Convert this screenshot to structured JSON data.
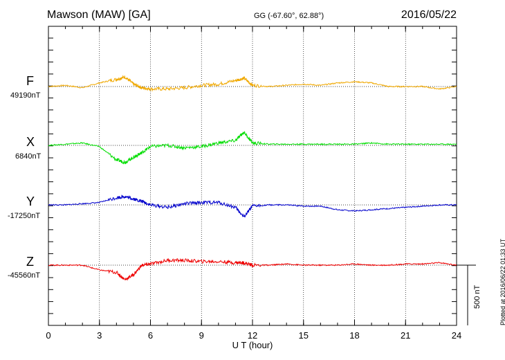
{
  "header": {
    "station": "Mawson (MAW)  [GA]",
    "coords": "GG (-67.60°,  62.88°)",
    "date": "2016/05/22"
  },
  "plotted_note": "Plotted at 2016/06/22 01:33 UT",
  "scale_label": "500 nT",
  "colors": {
    "F": "#f0a800",
    "X": "#00dd00",
    "Y": "#0000cc",
    "Z": "#ee0000",
    "axis": "#000000"
  },
  "chart_data": {
    "type": "line",
    "xlabel": "U T (hour)",
    "xlim": [
      0,
      24
    ],
    "x_ticks": [
      0,
      3,
      6,
      9,
      12,
      15,
      18,
      21,
      24
    ],
    "scale_bar_nT": 500,
    "series": [
      {
        "name": "F",
        "baseline": "49190nT",
        "points": [
          [
            0,
            0
          ],
          [
            1,
            10
          ],
          [
            2,
            -10
          ],
          [
            3,
            30
          ],
          [
            4,
            60
          ],
          [
            4.5,
            80
          ],
          [
            5,
            20
          ],
          [
            5.5,
            -10
          ],
          [
            6,
            -20
          ],
          [
            7,
            -20
          ],
          [
            8,
            -10
          ],
          [
            9,
            10
          ],
          [
            10,
            20
          ],
          [
            11,
            50
          ],
          [
            11.5,
            70
          ],
          [
            12,
            10
          ],
          [
            13,
            0
          ],
          [
            14,
            10
          ],
          [
            15,
            20
          ],
          [
            16,
            10
          ],
          [
            17,
            30
          ],
          [
            18,
            40
          ],
          [
            19,
            30
          ],
          [
            20,
            0
          ],
          [
            21,
            0
          ],
          [
            22,
            0
          ],
          [
            23,
            -20
          ],
          [
            24,
            0
          ]
        ]
      },
      {
        "name": "X",
        "baseline": "6840nT",
        "points": [
          [
            0,
            0
          ],
          [
            1,
            10
          ],
          [
            2,
            20
          ],
          [
            3,
            -10
          ],
          [
            4,
            -120
          ],
          [
            4.5,
            -140
          ],
          [
            5,
            -100
          ],
          [
            5.5,
            -60
          ],
          [
            6,
            -10
          ],
          [
            7,
            0
          ],
          [
            8,
            -20
          ],
          [
            9,
            -10
          ],
          [
            10,
            20
          ],
          [
            11,
            40
          ],
          [
            11.5,
            110
          ],
          [
            12,
            20
          ],
          [
            13,
            10
          ],
          [
            14,
            10
          ],
          [
            15,
            10
          ],
          [
            16,
            10
          ],
          [
            17,
            10
          ],
          [
            18,
            10
          ],
          [
            19,
            20
          ],
          [
            20,
            10
          ],
          [
            21,
            10
          ],
          [
            22,
            10
          ],
          [
            23,
            10
          ],
          [
            24,
            10
          ]
        ]
      },
      {
        "name": "Y",
        "baseline": "-17250nT",
        "points": [
          [
            0,
            0
          ],
          [
            1,
            0
          ],
          [
            2,
            10
          ],
          [
            3,
            20
          ],
          [
            4,
            60
          ],
          [
            4.5,
            70
          ],
          [
            5,
            50
          ],
          [
            5.5,
            30
          ],
          [
            6,
            0
          ],
          [
            7,
            -20
          ],
          [
            8,
            10
          ],
          [
            9,
            20
          ],
          [
            10,
            20
          ],
          [
            11,
            -20
          ],
          [
            11.5,
            -100
          ],
          [
            12,
            -10
          ],
          [
            13,
            0
          ],
          [
            14,
            0
          ],
          [
            15,
            -10
          ],
          [
            16,
            -10
          ],
          [
            17,
            -40
          ],
          [
            18,
            -50
          ],
          [
            19,
            -40
          ],
          [
            20,
            -30
          ],
          [
            21,
            -20
          ],
          [
            22,
            -10
          ],
          [
            23,
            0
          ],
          [
            24,
            0
          ]
        ]
      },
      {
        "name": "Z",
        "baseline": "-45560nT",
        "points": [
          [
            0,
            0
          ],
          [
            1,
            0
          ],
          [
            2,
            0
          ],
          [
            3,
            -40
          ],
          [
            4,
            -60
          ],
          [
            4.5,
            -120
          ],
          [
            5,
            -80
          ],
          [
            5.5,
            0
          ],
          [
            6,
            10
          ],
          [
            7,
            40
          ],
          [
            8,
            40
          ],
          [
            9,
            30
          ],
          [
            10,
            30
          ],
          [
            11,
            20
          ],
          [
            11.5,
            20
          ],
          [
            12,
            0
          ],
          [
            13,
            0
          ],
          [
            14,
            10
          ],
          [
            15,
            0
          ],
          [
            16,
            0
          ],
          [
            17,
            0
          ],
          [
            18,
            10
          ],
          [
            19,
            0
          ],
          [
            20,
            0
          ],
          [
            21,
            10
          ],
          [
            22,
            10
          ],
          [
            23,
            20
          ],
          [
            24,
            0
          ]
        ]
      }
    ]
  }
}
